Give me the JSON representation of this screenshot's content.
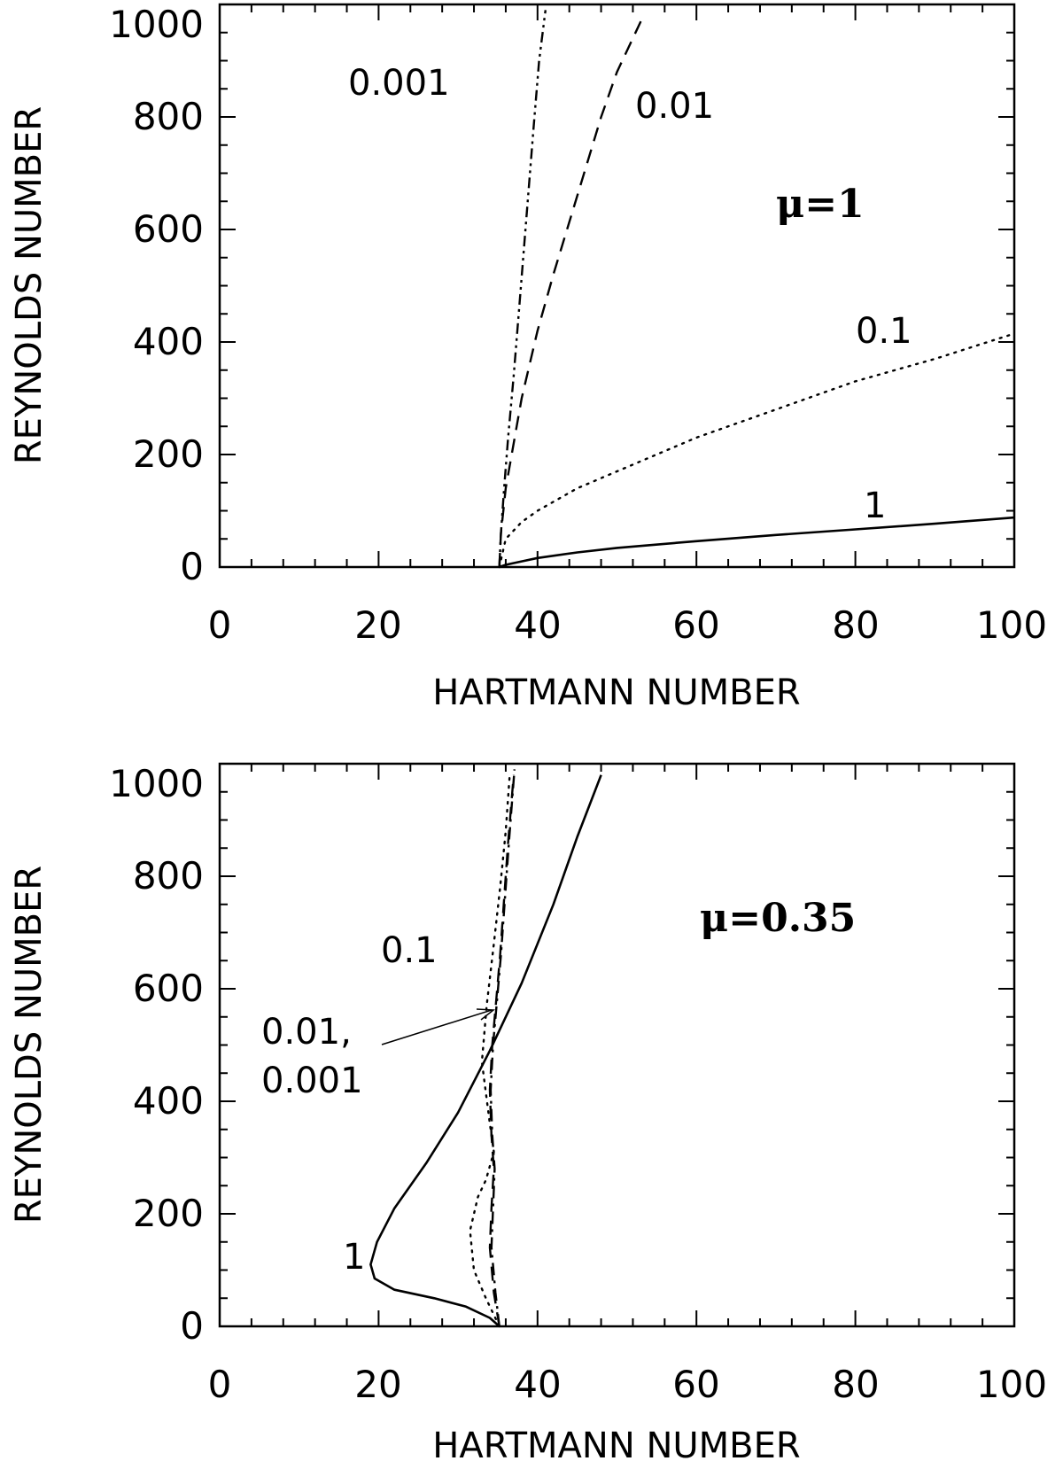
{
  "chart_data": [
    {
      "type": "line",
      "xlabel": "HARTMANN NUMBER",
      "ylabel": "REYNOLDS NUMBER",
      "xlim": [
        0,
        100
      ],
      "ylim": [
        0,
        1000
      ],
      "xticks": [
        "0",
        "20",
        "40",
        "60",
        "80",
        "100"
      ],
      "yticks": [
        "0",
        "200",
        "400",
        "600",
        "800",
        "1000"
      ],
      "grid": false,
      "annotation": "μ=1",
      "series": [
        {
          "name": "1",
          "style": "solid",
          "x": [
            35.2,
            36,
            38,
            40,
            45,
            50,
            60,
            70,
            80,
            90,
            100
          ],
          "y": [
            0,
            4,
            10,
            16,
            26,
            34,
            46,
            57,
            67,
            77,
            88
          ]
        },
        {
          "name": "0.1",
          "style": "dotted",
          "x": [
            35.2,
            36,
            38,
            40,
            45,
            50,
            60,
            70,
            80,
            90,
            100
          ],
          "y": [
            0,
            50,
            80,
            100,
            140,
            170,
            230,
            280,
            330,
            370,
            415
          ]
        },
        {
          "name": "0.01",
          "style": "dashed",
          "x": [
            35.2,
            35.4,
            36,
            37,
            38,
            40,
            42,
            45,
            48,
            50,
            53
          ],
          "y": [
            0,
            60,
            140,
            220,
            300,
            420,
            520,
            660,
            800,
            880,
            970
          ]
        },
        {
          "name": "0.001",
          "style": "dashdotdot",
          "x": [
            35.2,
            35.4,
            35.8,
            36.3,
            37,
            37.8,
            38.6,
            39.5,
            40.2,
            41
          ],
          "y": [
            0,
            60,
            140,
            230,
            340,
            480,
            620,
            780,
            900,
            990
          ]
        }
      ],
      "labels": [
        "0.001",
        "0.01",
        "0.1",
        "1"
      ]
    },
    {
      "type": "line",
      "xlabel": "HARTMANN NUMBER",
      "ylabel": "REYNOLDS NUMBER",
      "xlim": [
        0,
        100
      ],
      "ylim": [
        0,
        1000
      ],
      "xticks": [
        "0",
        "20",
        "40",
        "60",
        "80",
        "100"
      ],
      "yticks": [
        "0",
        "200",
        "400",
        "600",
        "800",
        "1000"
      ],
      "grid": false,
      "annotation": "μ=0.35",
      "series": [
        {
          "name": "1",
          "style": "solid",
          "x": [
            35.2,
            34,
            31,
            27,
            22,
            19.5,
            19,
            19.8,
            22,
            26,
            30,
            34,
            38,
            42,
            45,
            48
          ],
          "y": [
            0,
            15,
            35,
            50,
            65,
            85,
            110,
            150,
            210,
            290,
            380,
            490,
            610,
            750,
            870,
            980
          ]
        },
        {
          "name": "0.1",
          "style": "dotted",
          "x": [
            35.2,
            33.5,
            32,
            31.5,
            32.5,
            33.5,
            34.5,
            34,
            33,
            33.6,
            34.5,
            35.3,
            36,
            36.5
          ],
          "y": [
            0,
            50,
            100,
            170,
            230,
            260,
            310,
            360,
            470,
            570,
            680,
            780,
            880,
            980
          ]
        },
        {
          "name": "0.01",
          "style": "dashed",
          "x": [
            35.2,
            34.5,
            34,
            34.2,
            34.5,
            34.2,
            34,
            34.3,
            34.8,
            35.3,
            35.8,
            36.3,
            37
          ],
          "y": [
            0,
            60,
            140,
            210,
            280,
            340,
            420,
            500,
            580,
            660,
            760,
            860,
            980
          ]
        },
        {
          "name": "0.001",
          "style": "dashdot",
          "x": [
            35.2,
            34.7,
            34.2,
            34.4,
            34.6,
            34.3,
            34.1,
            34.4,
            34.9,
            35.4,
            35.9,
            36.4,
            37.1
          ],
          "y": [
            0,
            60,
            140,
            210,
            280,
            340,
            420,
            500,
            580,
            660,
            760,
            860,
            990
          ]
        }
      ],
      "labels": [
        "0.1",
        "0.01,",
        "0.001",
        "1"
      ]
    }
  ]
}
